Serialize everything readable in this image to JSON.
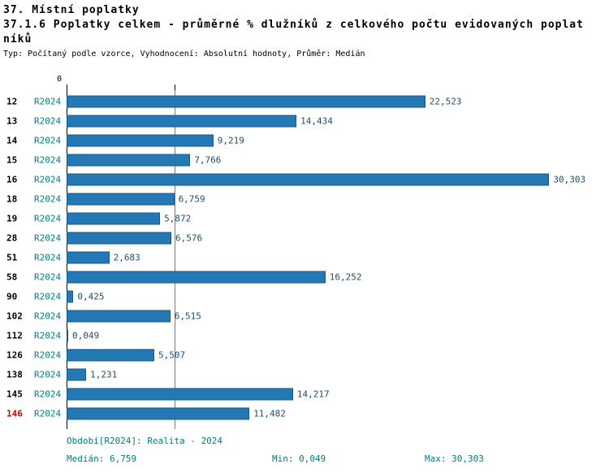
{
  "header": {
    "title_line1": "37. Místní poplatky",
    "title_line2": "37.1.6 Poplatky celkem - průměrné % dlužníků z celkového počtu evidovaných poplat",
    "title_line3": "níků",
    "meta": "Typ: Počítaný podle vzorce, Vyhodnocení: Absolutní hodnoty, Průměr: Medián"
  },
  "chart_data": {
    "type": "bar",
    "orientation": "horizontal",
    "title": "37.1.6 Poplatky celkem - průměrné % dlužníků z celkového počtu evidovaných poplatníků",
    "series_name": "R2024",
    "xlim": [
      0,
      31
    ],
    "x_zero_label": "0",
    "median_value": 6.759,
    "grid": "median-line-only",
    "rows": [
      {
        "id": "12",
        "period": "R2024",
        "value": 22.523,
        "value_label": "22,523",
        "highlight": false
      },
      {
        "id": "13",
        "period": "R2024",
        "value": 14.434,
        "value_label": "14,434",
        "highlight": false
      },
      {
        "id": "14",
        "period": "R2024",
        "value": 9.219,
        "value_label": "9,219",
        "highlight": false
      },
      {
        "id": "15",
        "period": "R2024",
        "value": 7.766,
        "value_label": "7,766",
        "highlight": false
      },
      {
        "id": "16",
        "period": "R2024",
        "value": 30.303,
        "value_label": "30,303",
        "highlight": false
      },
      {
        "id": "18",
        "period": "R2024",
        "value": 6.759,
        "value_label": "6,759",
        "highlight": false
      },
      {
        "id": "19",
        "period": "R2024",
        "value": 5.872,
        "value_label": "5,872",
        "highlight": false
      },
      {
        "id": "28",
        "period": "R2024",
        "value": 6.576,
        "value_label": "6,576",
        "highlight": false
      },
      {
        "id": "51",
        "period": "R2024",
        "value": 2.683,
        "value_label": "2,683",
        "highlight": false
      },
      {
        "id": "58",
        "period": "R2024",
        "value": 16.252,
        "value_label": "16,252",
        "highlight": false
      },
      {
        "id": "90",
        "period": "R2024",
        "value": 0.425,
        "value_label": "0,425",
        "highlight": false
      },
      {
        "id": "102",
        "period": "R2024",
        "value": 6.515,
        "value_label": "6,515",
        "highlight": false
      },
      {
        "id": "112",
        "period": "R2024",
        "value": 0.049,
        "value_label": "0,049",
        "highlight": false
      },
      {
        "id": "126",
        "period": "R2024",
        "value": 5.507,
        "value_label": "5,507",
        "highlight": false
      },
      {
        "id": "138",
        "period": "R2024",
        "value": 1.231,
        "value_label": "1,231",
        "highlight": false
      },
      {
        "id": "145",
        "period": "R2024",
        "value": 14.217,
        "value_label": "14,217",
        "highlight": false
      },
      {
        "id": "146",
        "period": "R2024",
        "value": 11.482,
        "value_label": "11,482",
        "highlight": true
      }
    ]
  },
  "footer": {
    "period": "Období[R2024]: Realita - 2024",
    "median": "Medián: 6,759",
    "min": "Min: 0,049",
    "max": "Max: 30,303"
  },
  "colors": {
    "bar": "#2478b4",
    "bar_border": "#17578a",
    "period_text": "#008080",
    "value_text": "#1b4f72",
    "footer_text": "#008080",
    "highlight_text": "#cc0000",
    "axis_line": "#000000",
    "grid_line": "#7a7a7a"
  }
}
